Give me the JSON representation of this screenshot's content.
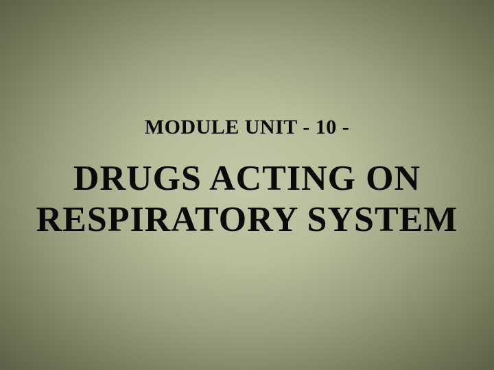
{
  "slide": {
    "subtitle": "MODULE UNIT   - 10 -",
    "title_line1": "DRUGS ACTING ON",
    "title_line2": "RESPIRATORY SYSTEM",
    "subtitle_fontsize": 30,
    "title_fontsize": 52,
    "text_color": "#0a0a0a",
    "background_gradient_center": "#c4c8a8",
    "background_gradient_mid1": "#b8bc9a",
    "background_gradient_mid2": "#9ca080",
    "background_gradient_outer1": "#787c5c",
    "background_gradient_edge": "#5c6048",
    "layout_width": 720,
    "layout_height": 540
  }
}
